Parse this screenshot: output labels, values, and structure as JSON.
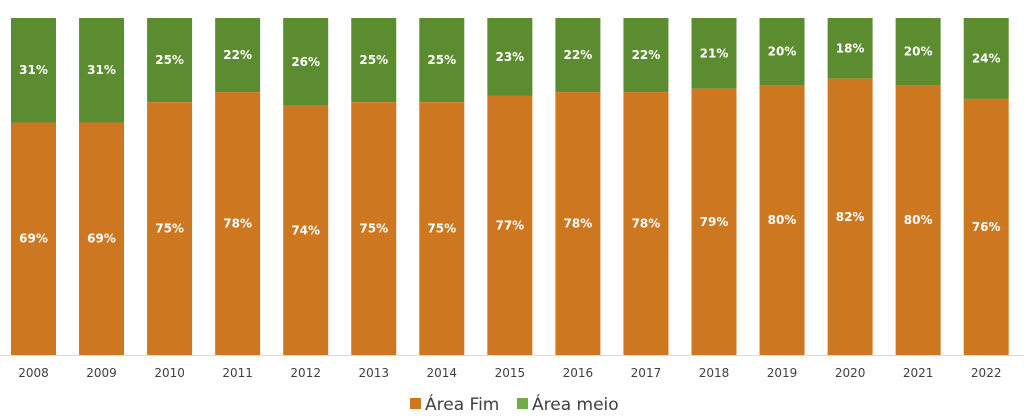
{
  "chart_data": {
    "type": "bar",
    "stacked": true,
    "categories": [
      "2008",
      "2009",
      "2010",
      "2011",
      "2012",
      "2013",
      "2014",
      "2015",
      "2016",
      "2017",
      "2018",
      "2019",
      "2020",
      "2021",
      "2022"
    ],
    "series": [
      {
        "name": "Área Fim",
        "color": "#cd7721",
        "values": [
          69,
          69,
          75,
          78,
          74,
          75,
          75,
          77,
          78,
          78,
          79,
          80,
          82,
          80,
          76
        ],
        "labels": [
          "69%",
          "69%",
          "75%",
          "78%",
          "74%",
          "75%",
          "75%",
          "77%",
          "78%",
          "78%",
          "79%",
          "80%",
          "82%",
          "80%",
          "76%"
        ]
      },
      {
        "name": "Área meio",
        "color": "#5b8c2f",
        "legend_color": "#70ad47",
        "values": [
          31,
          31,
          25,
          22,
          26,
          25,
          25,
          23,
          22,
          22,
          21,
          20,
          18,
          20,
          24
        ],
        "labels": [
          "31%",
          "31%",
          "25%",
          "22%",
          "26%",
          "25%",
          "25%",
          "23%",
          "22%",
          "22%",
          "21%",
          "20%",
          "18%",
          "20%",
          "24%"
        ]
      }
    ],
    "ylim": [
      0,
      100
    ],
    "grid": false,
    "legend_position": "bottom-center",
    "axis_color": "#d9d9d9"
  }
}
